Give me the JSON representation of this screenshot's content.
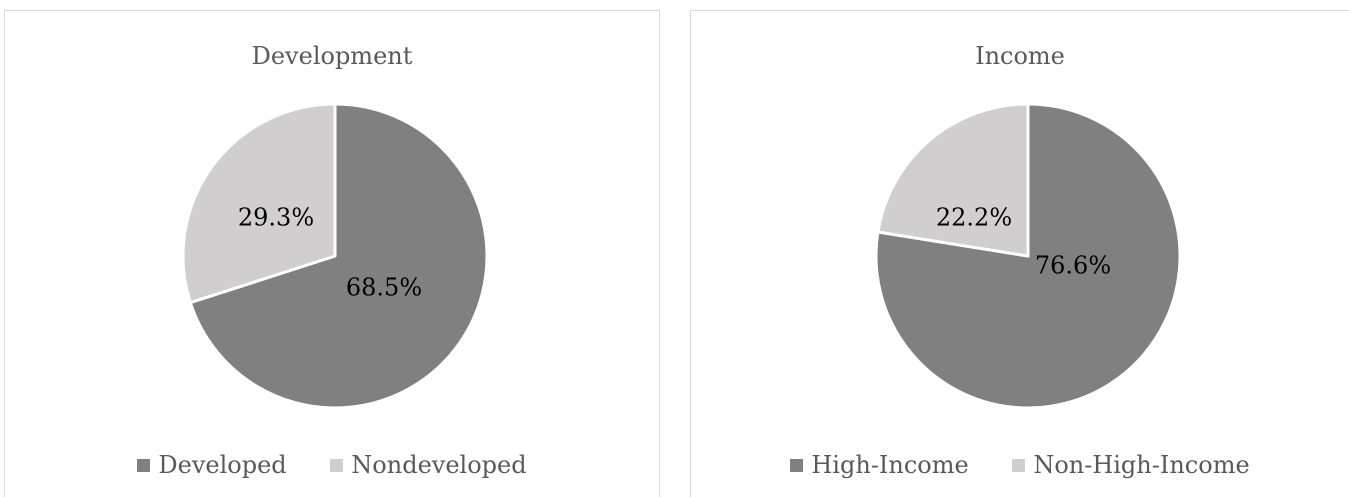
{
  "chart_data": [
    {
      "type": "pie",
      "title": "Development",
      "categories": [
        "Developed",
        "Nondeveloped"
      ],
      "values": [
        68.5,
        29.3
      ],
      "labels": [
        "68.5%",
        "29.3%"
      ],
      "colors": [
        "#808080",
        "#d0cecf"
      ],
      "legend_position": "bottom"
    },
    {
      "type": "pie",
      "title": "Income",
      "categories": [
        "High-Income",
        "Non-High-Income"
      ],
      "values": [
        76.6,
        22.2
      ],
      "labels": [
        "76.6%",
        "22.2%"
      ],
      "colors": [
        "#808080",
        "#d0cecf"
      ],
      "legend_position": "bottom"
    }
  ]
}
